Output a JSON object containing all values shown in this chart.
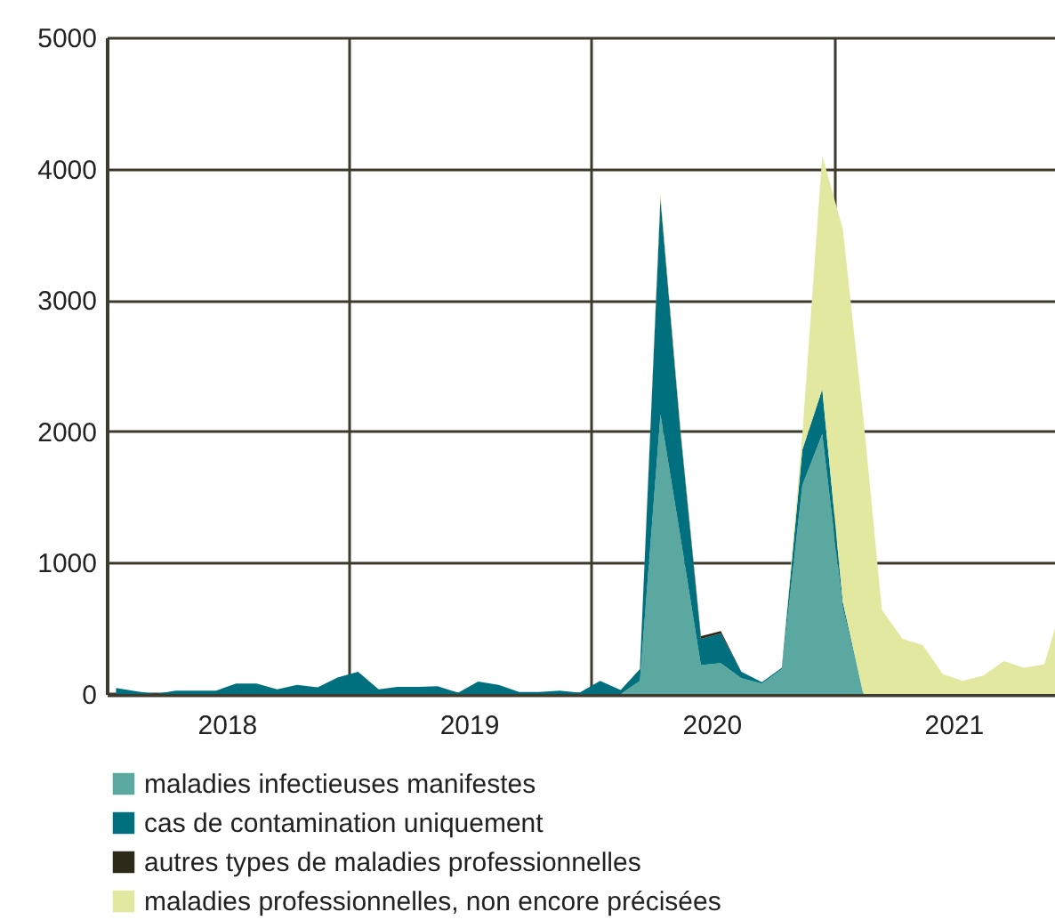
{
  "chart_data": {
    "type": "area",
    "stacked": true,
    "x": [
      "2018-01-15",
      "2018-02-15",
      "2018-03-15",
      "2018-04-15",
      "2018-05-15",
      "2018-06-15",
      "2018-07-15",
      "2018-08-15",
      "2018-09-15",
      "2018-10-15",
      "2018-11-15",
      "2018-12-15",
      "2019-01-15",
      "2019-02-15",
      "2019-03-15",
      "2019-04-15",
      "2019-05-15",
      "2019-06-15",
      "2019-07-15",
      "2019-08-15",
      "2019-09-15",
      "2019-10-15",
      "2019-11-15",
      "2019-12-15",
      "2020-01-15",
      "2020-02-15",
      "2020-03-15",
      "2020-04-15",
      "2020-05-15",
      "2020-06-15",
      "2020-07-15",
      "2020-08-15",
      "2020-09-15",
      "2020-10-15",
      "2020-11-15",
      "2020-12-15",
      "2021-01-15",
      "2021-02-15",
      "2021-03-15",
      "2021-04-15",
      "2021-05-15",
      "2021-06-15",
      "2021-07-15",
      "2021-08-15",
      "2021-09-15",
      "2021-10-15",
      "2021-11-15",
      "2021-12-01"
    ],
    "series": [
      {
        "name": "maladies infectieuses manifestes",
        "color": "#5aa89f",
        "values": [
          0,
          0,
          0,
          0,
          0,
          0,
          0,
          0,
          0,
          0,
          0,
          0,
          0,
          0,
          0,
          0,
          0,
          0,
          0,
          0,
          0,
          0,
          0,
          0,
          0,
          0,
          100,
          2130,
          1200,
          220,
          235,
          120,
          80,
          190,
          1590,
          1980,
          660,
          0,
          0,
          0,
          0,
          0,
          0,
          0,
          0,
          0,
          0,
          0
        ]
      },
      {
        "name": "cas de contamination uniquement",
        "color": "#00707f",
        "values": [
          45,
          20,
          0,
          25,
          25,
          25,
          80,
          80,
          35,
          70,
          50,
          125,
          170,
          35,
          55,
          55,
          60,
          10,
          95,
          70,
          15,
          15,
          25,
          10,
          100,
          30,
          90,
          1630,
          800,
          200,
          225,
          50,
          10,
          10,
          270,
          340,
          40,
          0,
          0,
          0,
          0,
          0,
          0,
          0,
          0,
          0,
          0,
          0
        ]
      },
      {
        "name": "autres types de maladies professionnelles",
        "color": "#2e2a1a",
        "values": [
          0,
          0,
          0,
          0,
          0,
          0,
          0,
          0,
          0,
          0,
          0,
          0,
          0,
          0,
          0,
          0,
          0,
          0,
          0,
          0,
          0,
          0,
          0,
          0,
          0,
          0,
          0,
          20,
          20,
          20,
          20,
          0,
          0,
          0,
          0,
          0,
          0,
          0,
          0,
          0,
          0,
          0,
          0,
          0,
          0,
          0,
          0,
          0
        ]
      },
      {
        "name": "maladies professionnelles, non encore précisées",
        "color": "#e3e8a0",
        "values": [
          0,
          0,
          0,
          0,
          0,
          0,
          0,
          0,
          0,
          0,
          0,
          0,
          0,
          0,
          0,
          0,
          0,
          0,
          0,
          0,
          0,
          0,
          0,
          0,
          0,
          0,
          0,
          30,
          20,
          0,
          0,
          0,
          0,
          0,
          120,
          1780,
          2840,
          2100,
          640,
          420,
          375,
          150,
          100,
          140,
          250,
          200,
          225,
          500
        ]
      }
    ],
    "xlim": [
      "2018-01-01",
      "2021-12-01"
    ],
    "xticks": [
      {
        "value": "2018-01-01",
        "label": null
      },
      {
        "value": "2018-07-01",
        "label": "2018"
      },
      {
        "value": "2019-01-01",
        "label": null
      },
      {
        "value": "2019-07-01",
        "label": "2019"
      },
      {
        "value": "2020-01-01",
        "label": null
      },
      {
        "value": "2020-07-01",
        "label": "2020"
      },
      {
        "value": "2021-01-01",
        "label": null
      },
      {
        "value": "2021-07-01",
        "label": "2021"
      }
    ],
    "ylim": [
      0,
      5000
    ],
    "yticks": [
      0,
      1000,
      2000,
      3000,
      4000,
      5000
    ],
    "grid": true,
    "legend": "bottom"
  }
}
